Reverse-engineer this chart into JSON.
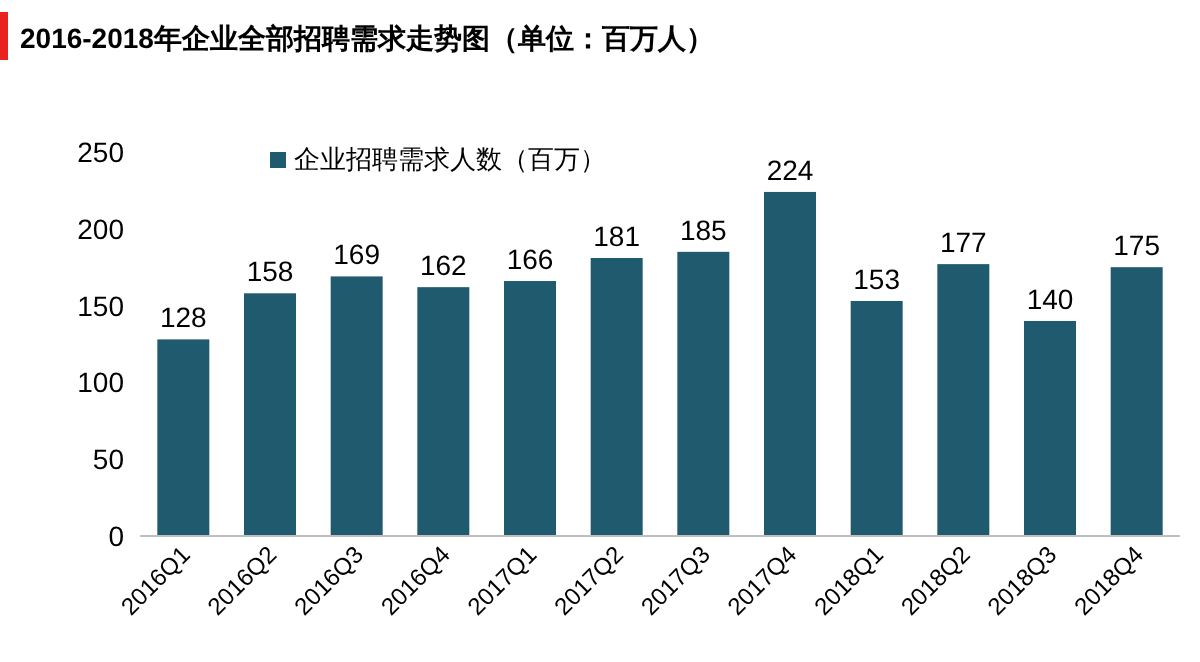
{
  "chart_data": {
    "type": "bar",
    "title": "2016-2018年企业全部招聘需求走势图（单位：百万人）",
    "categories": [
      "2016Q1",
      "2016Q2",
      "2016Q3",
      "2016Q4",
      "2017Q1",
      "2017Q2",
      "2017Q3",
      "2017Q4",
      "2018Q1",
      "2018Q2",
      "2018Q3",
      "2018Q4"
    ],
    "series": [
      {
        "name": "企业招聘需求人数（百万）",
        "color": "#1f5a6e",
        "values": [
          128,
          158,
          169,
          162,
          166,
          181,
          185,
          224,
          153,
          177,
          140,
          175
        ]
      }
    ],
    "ylim": [
      0,
      250
    ],
    "yticks": [
      0,
      50,
      100,
      150,
      200,
      250
    ],
    "data_labels": true,
    "legend": "top left",
    "grid": false
  }
}
